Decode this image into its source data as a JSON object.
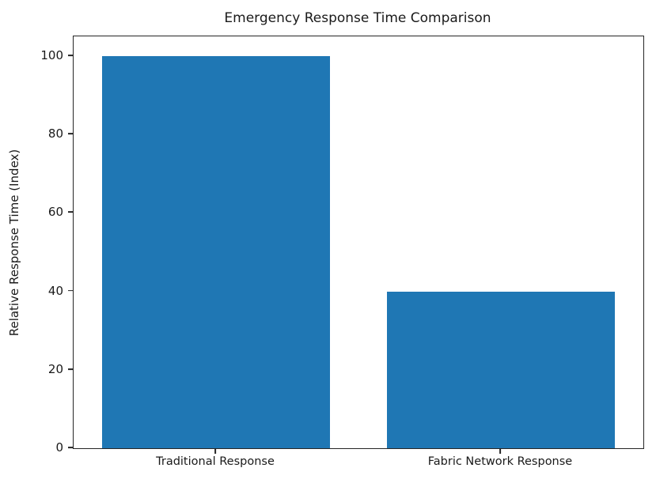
{
  "chart_data": {
    "type": "bar",
    "title": "Emergency Response Time Comparison",
    "categories": [
      "Traditional Response",
      "Fabric Network Response"
    ],
    "values": [
      100,
      40
    ],
    "xlabel": "",
    "ylabel": "Relative Response Time (Index)",
    "ylim": [
      0,
      105
    ],
    "yticks": [
      0,
      20,
      40,
      60,
      80,
      100
    ],
    "bar_color": "#1f77b4",
    "grid": false,
    "legend_position": "none"
  }
}
